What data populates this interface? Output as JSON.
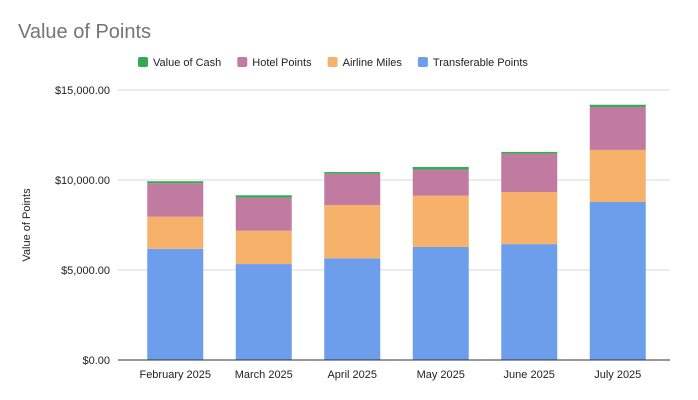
{
  "chart_data": {
    "type": "bar",
    "stacked": true,
    "title": "Value of Points",
    "xlabel": "",
    "ylabel": "Value of Points",
    "ylim": [
      0,
      15000
    ],
    "yticks": [
      0,
      5000,
      10000,
      15000
    ],
    "ytick_labels": [
      "$0.00",
      "$5,000.00",
      "$10,000.00",
      "$15,000.00"
    ],
    "grid": true,
    "legend_position": "top",
    "categories": [
      "February 2025",
      "March 2025",
      "April 2025",
      "May 2025",
      "June 2025",
      "July 2025"
    ],
    "series": [
      {
        "name": "Transferable Points",
        "color": "#6d9eeb",
        "values": [
          6180,
          5330,
          5650,
          6280,
          6440,
          8780
        ]
      },
      {
        "name": "Airline Miles",
        "color": "#f6b26b",
        "values": [
          1780,
          1850,
          2960,
          2850,
          2890,
          2890
        ]
      },
      {
        "name": "Hotel Points",
        "color": "#c27ba0",
        "values": [
          1860,
          1840,
          1740,
          1440,
          2130,
          2390
        ]
      },
      {
        "name": "Value of Cash",
        "color": "#34a853",
        "values": [
          110,
          130,
          90,
          150,
          100,
          120
        ]
      }
    ],
    "legend_order": [
      "Value of Cash",
      "Hotel Points",
      "Airline Miles",
      "Transferable Points"
    ]
  }
}
